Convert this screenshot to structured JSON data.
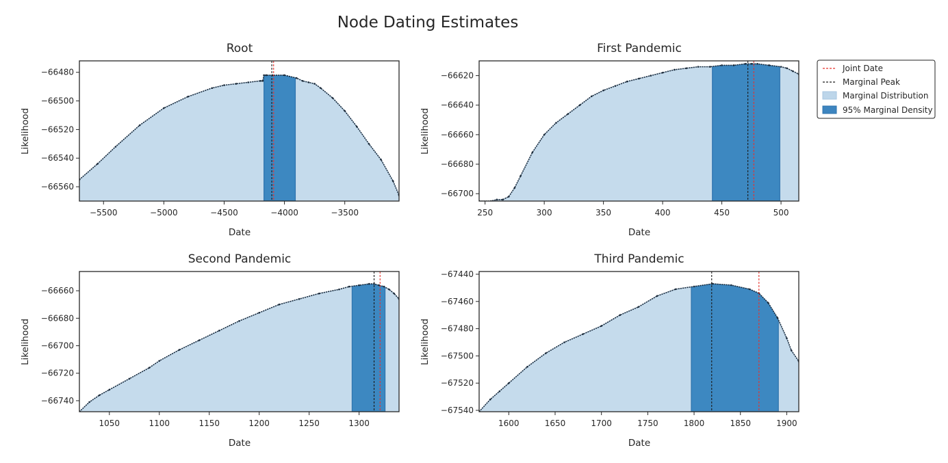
{
  "title": "Node Dating Estimates",
  "legend": {
    "placement": "outside-right",
    "entries": [
      {
        "label": "Joint Date",
        "color": "#e8312b",
        "style": "dashed-line"
      },
      {
        "label": "Marginal Peak",
        "color": "#1a1a1a",
        "style": "dashed-line"
      },
      {
        "label": "Marginal Distribution",
        "color": "#bdd6ea",
        "style": "patch"
      },
      {
        "label": "95% Marginal Density",
        "color": "#3d85c0",
        "style": "patch"
      }
    ]
  },
  "colors": {
    "fill": "#c5dbec",
    "band": "#3d88c1",
    "band_edge": "#2f73ad",
    "line": "#1b2a3a",
    "joint": "#e8312b",
    "peak": "#1a1a1a"
  },
  "chart_data": [
    {
      "type": "area",
      "title": "Root",
      "xlabel": "Date",
      "ylabel": "Likelihood",
      "xlim": [
        -5700,
        -3050
      ],
      "ylim": [
        -66570,
        -66472
      ],
      "xticks": [
        -5500,
        -5000,
        -4500,
        -4000,
        -3500
      ],
      "yticks": [
        -66480,
        -66500,
        -66520,
        -66540,
        -66560
      ],
      "x": [
        -5700,
        -5550,
        -5400,
        -5200,
        -5000,
        -4800,
        -4600,
        -4500,
        -4400,
        -4300,
        -4200,
        -4180,
        -4170,
        -4150,
        -4100,
        -4000,
        -3900,
        -3850,
        -3800,
        -3750,
        -3700,
        -3600,
        -3500,
        -3400,
        -3300,
        -3200,
        -3100,
        -3050
      ],
      "y": [
        -66555,
        -66544,
        -66532,
        -66517,
        -66505,
        -66497,
        -66491,
        -66489,
        -66488,
        -66487,
        -66486,
        -66486,
        -66482,
        -66482,
        -66482,
        -66482,
        -66484,
        -66486,
        -66487,
        -66488,
        -66491,
        -66498,
        -66507,
        -66518,
        -66530,
        -66541,
        -66556,
        -66566
      ],
      "band": [
        -4170,
        -3910
      ],
      "joint_date": -4090,
      "marginal_peak": -4105
    },
    {
      "type": "area",
      "title": "First Pandemic",
      "xlabel": "Date",
      "ylabel": "Likelihood",
      "xlim": [
        245,
        515
      ],
      "ylim": [
        -66705,
        -66610
      ],
      "xticks": [
        250,
        300,
        350,
        400,
        450,
        500
      ],
      "yticks": [
        -66620,
        -66640,
        -66660,
        -66680,
        -66700
      ],
      "x": [
        245,
        255,
        260,
        265,
        270,
        275,
        280,
        290,
        300,
        310,
        320,
        330,
        340,
        350,
        360,
        370,
        380,
        390,
        400,
        410,
        420,
        430,
        440,
        450,
        460,
        470,
        475,
        480,
        490,
        500,
        505,
        510,
        515
      ],
      "y": [
        -66705,
        -66705,
        -66704,
        -66704,
        -66702,
        -66696,
        -66688,
        -66672,
        -66660,
        -66652,
        -66646,
        -66640,
        -66634,
        -66630,
        -66627,
        -66624,
        -66622,
        -66620,
        -66618,
        -66616,
        -66615,
        -66614,
        -66614,
        -66613,
        -66613,
        -66612,
        -66612,
        -66612,
        -66613,
        -66614,
        -66615,
        -66617,
        -66619
      ],
      "band": [
        442,
        499
      ],
      "joint_date": 477,
      "marginal_peak": 472
    },
    {
      "type": "area",
      "title": "Second Pandemic",
      "xlabel": "Date",
      "ylabel": "Likelihood",
      "xlim": [
        1020,
        1340
      ],
      "ylim": [
        -66748,
        -66646
      ],
      "xticks": [
        1050,
        1100,
        1150,
        1200,
        1250,
        1300
      ],
      "yticks": [
        -66660,
        -66680,
        -66700,
        -66720,
        -66740
      ],
      "x": [
        1020,
        1030,
        1040,
        1050,
        1070,
        1090,
        1100,
        1120,
        1140,
        1160,
        1180,
        1200,
        1220,
        1240,
        1260,
        1280,
        1290,
        1300,
        1310,
        1315,
        1320,
        1325,
        1330,
        1335,
        1340
      ],
      "y": [
        -66748,
        -66741,
        -66736,
        -66732,
        -66724,
        -66716,
        -66711,
        -66703,
        -66696,
        -66689,
        -66682,
        -66676,
        -66670,
        -66666,
        -66662,
        -66659,
        -66657,
        -66656,
        -66655,
        -66655,
        -66656,
        -66657,
        -66659,
        -66662,
        -66666
      ],
      "band": [
        1293,
        1326
      ],
      "joint_date": 1321,
      "marginal_peak": 1315
    },
    {
      "type": "area",
      "title": "Third Pandemic",
      "xlabel": "Date",
      "ylabel": "Likelihood",
      "xlim": [
        1568,
        1913
      ],
      "ylim": [
        -67541,
        -67438
      ],
      "xticks": [
        1600,
        1650,
        1700,
        1750,
        1800,
        1850,
        1900
      ],
      "yticks": [
        -67440,
        -67460,
        -67480,
        -67500,
        -67520,
        -67540
      ],
      "x": [
        1568,
        1580,
        1590,
        1600,
        1620,
        1640,
        1660,
        1680,
        1700,
        1720,
        1740,
        1760,
        1780,
        1800,
        1820,
        1840,
        1860,
        1870,
        1880,
        1890,
        1900,
        1905,
        1913
      ],
      "y": [
        -67541,
        -67532,
        -67526,
        -67520,
        -67508,
        -67498,
        -67490,
        -67484,
        -67478,
        -67470,
        -67464,
        -67456,
        -67451,
        -67449,
        -67447,
        -67448,
        -67451,
        -67454,
        -67461,
        -67472,
        -67487,
        -67496,
        -67504
      ],
      "band": [
        1797,
        1891
      ],
      "joint_date": 1870,
      "marginal_peak": 1819
    }
  ]
}
